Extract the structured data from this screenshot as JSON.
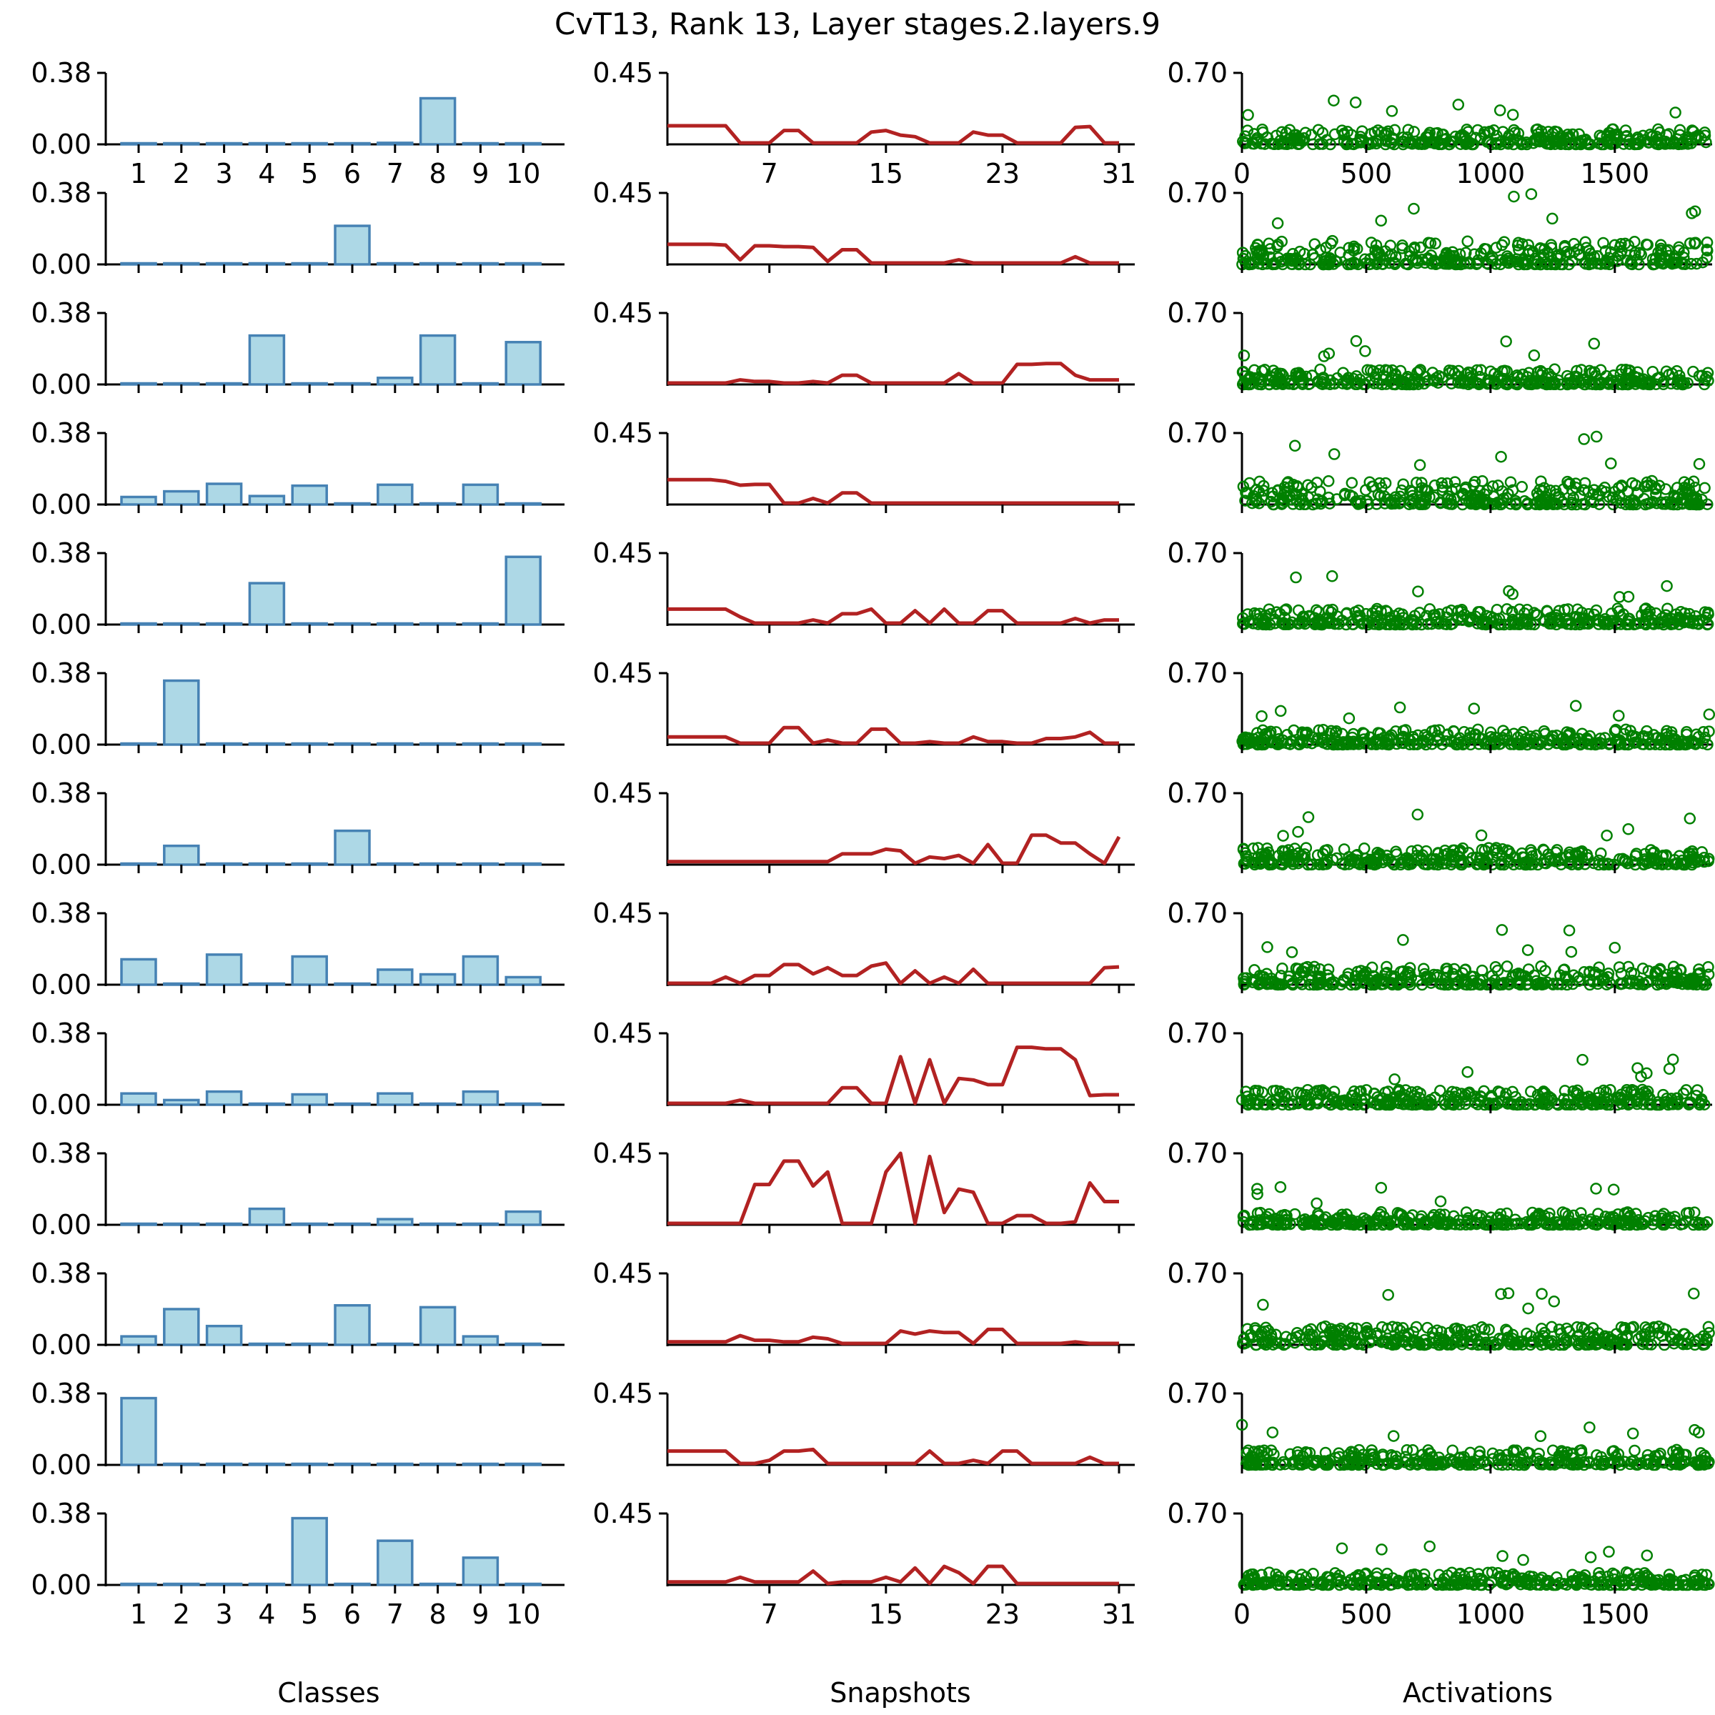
{
  "title": "CvT13, Rank 13, Layer stages.2.layers.9",
  "colors": {
    "bar_fill": "#add8e6",
    "bar_edge": "#4682b4",
    "line": "#b22222",
    "scatter": "#008000",
    "axis": "#000000"
  },
  "chart_data": [
    {
      "type": "bar",
      "panel": "Classes",
      "xlabel": "Classes",
      "categories": [
        "1",
        "2",
        "3",
        "4",
        "5",
        "6",
        "7",
        "8",
        "9",
        "10"
      ],
      "ylim": [
        0,
        0.38
      ],
      "yticks": [
        "0.00",
        "0.38"
      ],
      "series": [
        {
          "name": "row1",
          "values": [
            0.0,
            0.0,
            0.0,
            0.0,
            0.0,
            0.0,
            0.008,
            0.245,
            0.0,
            0.0
          ]
        },
        {
          "name": "row2",
          "values": [
            0.0,
            0.0,
            0.0,
            0.0,
            0.0,
            0.205,
            0.0,
            0.0,
            0.0,
            0.0
          ]
        },
        {
          "name": "row3",
          "values": [
            0.0,
            0.0,
            0.0,
            0.26,
            0.0,
            0.0,
            0.035,
            0.26,
            0.0,
            0.225
          ]
        },
        {
          "name": "row4",
          "values": [
            0.04,
            0.07,
            0.11,
            0.045,
            0.1,
            0.0,
            0.105,
            0.0,
            0.105,
            0.0
          ]
        },
        {
          "name": "row5",
          "values": [
            0.0,
            0.0,
            0.0,
            0.22,
            0.0,
            0.0,
            0.0,
            0.0,
            0.0,
            0.36
          ]
        },
        {
          "name": "row6",
          "values": [
            0.0,
            0.34,
            0.0,
            0.0,
            0.0,
            0.0,
            0.0,
            0.0,
            0.0,
            0.0
          ]
        },
        {
          "name": "row7",
          "values": [
            0.005,
            0.1,
            0.0,
            0.0,
            0.0,
            0.18,
            0.0,
            0.0,
            0.0,
            0.0
          ]
        },
        {
          "name": "row8",
          "values": [
            0.135,
            0.0,
            0.16,
            0.0,
            0.15,
            0.0,
            0.08,
            0.055,
            0.15,
            0.04
          ]
        },
        {
          "name": "row9",
          "values": [
            0.06,
            0.025,
            0.07,
            0.0,
            0.055,
            0.0,
            0.06,
            0.0,
            0.07,
            0.0
          ]
        },
        {
          "name": "row10",
          "values": [
            0.0,
            0.0,
            0.0,
            0.085,
            0.0,
            0.0,
            0.03,
            0.0,
            0.0,
            0.07
          ]
        },
        {
          "name": "row11",
          "values": [
            0.045,
            0.19,
            0.1,
            0.0,
            0.0,
            0.21,
            0.0,
            0.2,
            0.045,
            0.0
          ]
        },
        {
          "name": "row12",
          "values": [
            0.355,
            0.0,
            0.0,
            0.0,
            0.0,
            0.0,
            0.0,
            0.0,
            0.0,
            0.0
          ]
        },
        {
          "name": "row13",
          "values": [
            0.0,
            0.0,
            0.0,
            0.0,
            0.355,
            0.0,
            0.235,
            0.0,
            0.145,
            0.0
          ]
        }
      ]
    },
    {
      "type": "line",
      "panel": "Snapshots",
      "xlabel": "Snapshots",
      "xlim": [
        0,
        31
      ],
      "xticks": [
        "7",
        "15",
        "23",
        "31"
      ],
      "ylim": [
        0,
        0.45
      ],
      "yticks": [
        "0.45"
      ],
      "series": [
        {
          "name": "row1",
          "values": [
            0.11,
            0.11,
            0.11,
            0.11,
            0.11,
            0.0,
            0.0,
            0.0,
            0.08,
            0.08,
            0.0,
            0.0,
            0.0,
            0.0,
            0.07,
            0.08,
            0.05,
            0.04,
            0.0,
            0.0,
            0.0,
            0.07,
            0.05,
            0.05,
            0.0,
            0.0,
            0.0,
            0.0,
            0.1,
            0.105,
            0.0,
            0.0
          ]
        },
        {
          "name": "row2",
          "values": [
            0.12,
            0.12,
            0.12,
            0.12,
            0.115,
            0.02,
            0.11,
            0.11,
            0.105,
            0.105,
            0.1,
            0.01,
            0.085,
            0.085,
            0.0,
            0.0,
            0.0,
            0.0,
            0.0,
            0.0,
            0.02,
            0.0,
            0.0,
            0.0,
            0.0,
            0.0,
            0.0,
            0.0,
            0.04,
            0.0,
            0.0,
            0.0
          ]
        },
        {
          "name": "row3",
          "values": [
            0.0,
            0.0,
            0.0,
            0.0,
            0.0,
            0.02,
            0.01,
            0.01,
            0.0,
            0.0,
            0.01,
            0.0,
            0.05,
            0.05,
            0.0,
            0.0,
            0.0,
            0.0,
            0.0,
            0.0,
            0.06,
            0.0,
            0.0,
            0.0,
            0.12,
            0.12,
            0.125,
            0.125,
            0.05,
            0.02,
            0.02,
            0.02
          ]
        },
        {
          "name": "row4",
          "values": [
            0.15,
            0.15,
            0.15,
            0.15,
            0.14,
            0.115,
            0.12,
            0.12,
            0.0,
            0.0,
            0.03,
            0.0,
            0.065,
            0.065,
            0.0,
            0.0,
            0.0,
            0.0,
            0.0,
            0.0,
            0.0,
            0.0,
            0.0,
            0.0,
            0.0,
            0.0,
            0.0,
            0.0,
            0.0,
            0.0,
            0.0,
            0.0
          ]
        },
        {
          "name": "row5",
          "values": [
            0.09,
            0.09,
            0.09,
            0.09,
            0.09,
            0.04,
            0.0,
            0.0,
            0.0,
            0.0,
            0.02,
            0.0,
            0.06,
            0.06,
            0.09,
            0.0,
            0.0,
            0.08,
            0.0,
            0.09,
            0.0,
            0.0,
            0.08,
            0.08,
            0.0,
            0.0,
            0.0,
            0.0,
            0.03,
            0.0,
            0.02,
            0.02
          ]
        },
        {
          "name": "row6",
          "values": [
            0.04,
            0.04,
            0.04,
            0.04,
            0.04,
            0.0,
            0.0,
            0.0,
            0.1,
            0.1,
            0.0,
            0.02,
            0.0,
            0.0,
            0.09,
            0.09,
            0.0,
            0.0,
            0.01,
            0.0,
            0.0,
            0.04,
            0.01,
            0.01,
            0.0,
            0.0,
            0.03,
            0.03,
            0.04,
            0.07,
            0.0,
            0.0
          ]
        },
        {
          "name": "row7",
          "values": [
            0.01,
            0.01,
            0.01,
            0.01,
            0.01,
            0.01,
            0.01,
            0.01,
            0.01,
            0.01,
            0.01,
            0.01,
            0.06,
            0.06,
            0.06,
            0.09,
            0.08,
            0.0,
            0.04,
            0.03,
            0.05,
            0.0,
            0.12,
            0.0,
            0.0,
            0.18,
            0.18,
            0.13,
            0.13,
            0.06,
            0.0,
            0.17
          ]
        },
        {
          "name": "row8",
          "values": [
            0.0,
            0.0,
            0.0,
            0.0,
            0.04,
            0.0,
            0.05,
            0.05,
            0.12,
            0.12,
            0.06,
            0.1,
            0.05,
            0.05,
            0.11,
            0.13,
            0.0,
            0.08,
            0.0,
            0.04,
            0.0,
            0.09,
            0.0,
            0.0,
            0.0,
            0.0,
            0.0,
            0.0,
            0.0,
            0.0,
            0.1,
            0.105
          ]
        },
        {
          "name": "row9",
          "values": [
            0.0,
            0.0,
            0.0,
            0.0,
            0.0,
            0.02,
            0.0,
            0.0,
            0.0,
            0.0,
            0.0,
            0.0,
            0.1,
            0.1,
            0.0,
            0.0,
            0.3,
            0.0,
            0.28,
            0.0,
            0.16,
            0.15,
            0.12,
            0.12,
            0.36,
            0.36,
            0.35,
            0.35,
            0.28,
            0.05,
            0.055,
            0.055
          ]
        },
        {
          "name": "row10",
          "values": [
            0.0,
            0.0,
            0.0,
            0.0,
            0.0,
            0.0,
            0.25,
            0.25,
            0.4,
            0.4,
            0.24,
            0.33,
            0.0,
            0.0,
            0.0,
            0.33,
            0.45,
            0.0,
            0.43,
            0.07,
            0.22,
            0.2,
            0.0,
            0.0,
            0.05,
            0.05,
            0.0,
            0.0,
            0.01,
            0.26,
            0.14,
            0.14
          ]
        },
        {
          "name": "row11",
          "values": [
            0.01,
            0.01,
            0.01,
            0.01,
            0.01,
            0.05,
            0.02,
            0.02,
            0.01,
            0.01,
            0.04,
            0.03,
            0.0,
            0.0,
            0.0,
            0.0,
            0.08,
            0.06,
            0.08,
            0.07,
            0.07,
            0.0,
            0.09,
            0.09,
            0.0,
            0.0,
            0.0,
            0.0,
            0.01,
            0.0,
            0.0,
            0.0
          ]
        },
        {
          "name": "row12",
          "values": [
            0.08,
            0.08,
            0.08,
            0.08,
            0.08,
            0.0,
            0.0,
            0.02,
            0.08,
            0.08,
            0.09,
            0.0,
            0.0,
            0.0,
            0.0,
            0.0,
            0.0,
            0.0,
            0.08,
            0.0,
            0.0,
            0.02,
            0.0,
            0.08,
            0.08,
            0.0,
            0.0,
            0.0,
            0.0,
            0.04,
            0.0,
            0.0
          ]
        },
        {
          "name": "row13",
          "values": [
            0.01,
            0.01,
            0.01,
            0.01,
            0.01,
            0.04,
            0.01,
            0.01,
            0.01,
            0.01,
            0.08,
            0.0,
            0.01,
            0.01,
            0.01,
            0.04,
            0.01,
            0.1,
            0.0,
            0.11,
            0.07,
            0.0,
            0.11,
            0.11,
            0.0,
            0.0,
            0.0,
            0.0,
            0.0,
            0.0,
            0.0,
            0.0
          ]
        }
      ]
    },
    {
      "type": "scatter",
      "panel": "Activations",
      "xlabel": "Activations",
      "xlim": [
        0,
        1880
      ],
      "xticks": [
        "0",
        "500",
        "1000",
        "1500"
      ],
      "ylim": [
        0,
        0.7
      ],
      "yticks": [
        "0.70"
      ],
      "n_points": 1880,
      "row_max": [
        0.45,
        0.7,
        0.45,
        0.7,
        0.48,
        0.45,
        0.5,
        0.55,
        0.45,
        0.38,
        0.55,
        0.45,
        0.38
      ]
    }
  ]
}
